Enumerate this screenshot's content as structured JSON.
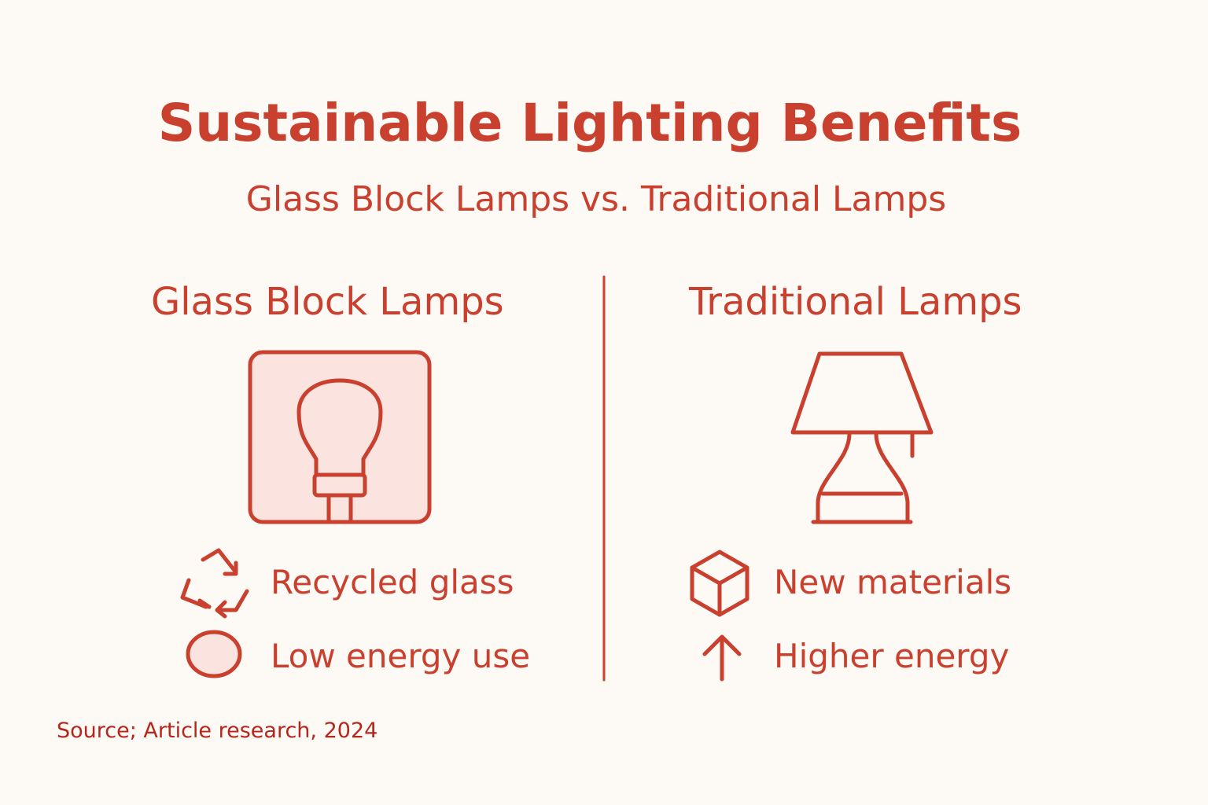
{
  "header": {
    "title": "Sustainable Lighting Benefits",
    "subtitle": "Glass Block Lamps vs. Traditional Lamps"
  },
  "columns": [
    {
      "title": "Glass Block Lamps",
      "items": [
        "Recycled glass",
        "Low energy use"
      ]
    },
    {
      "title": "Traditional Lamps",
      "items": [
        "New materials",
        "Higher energy"
      ]
    }
  ],
  "footer": {
    "source": "Source; Article research, 2024"
  }
}
